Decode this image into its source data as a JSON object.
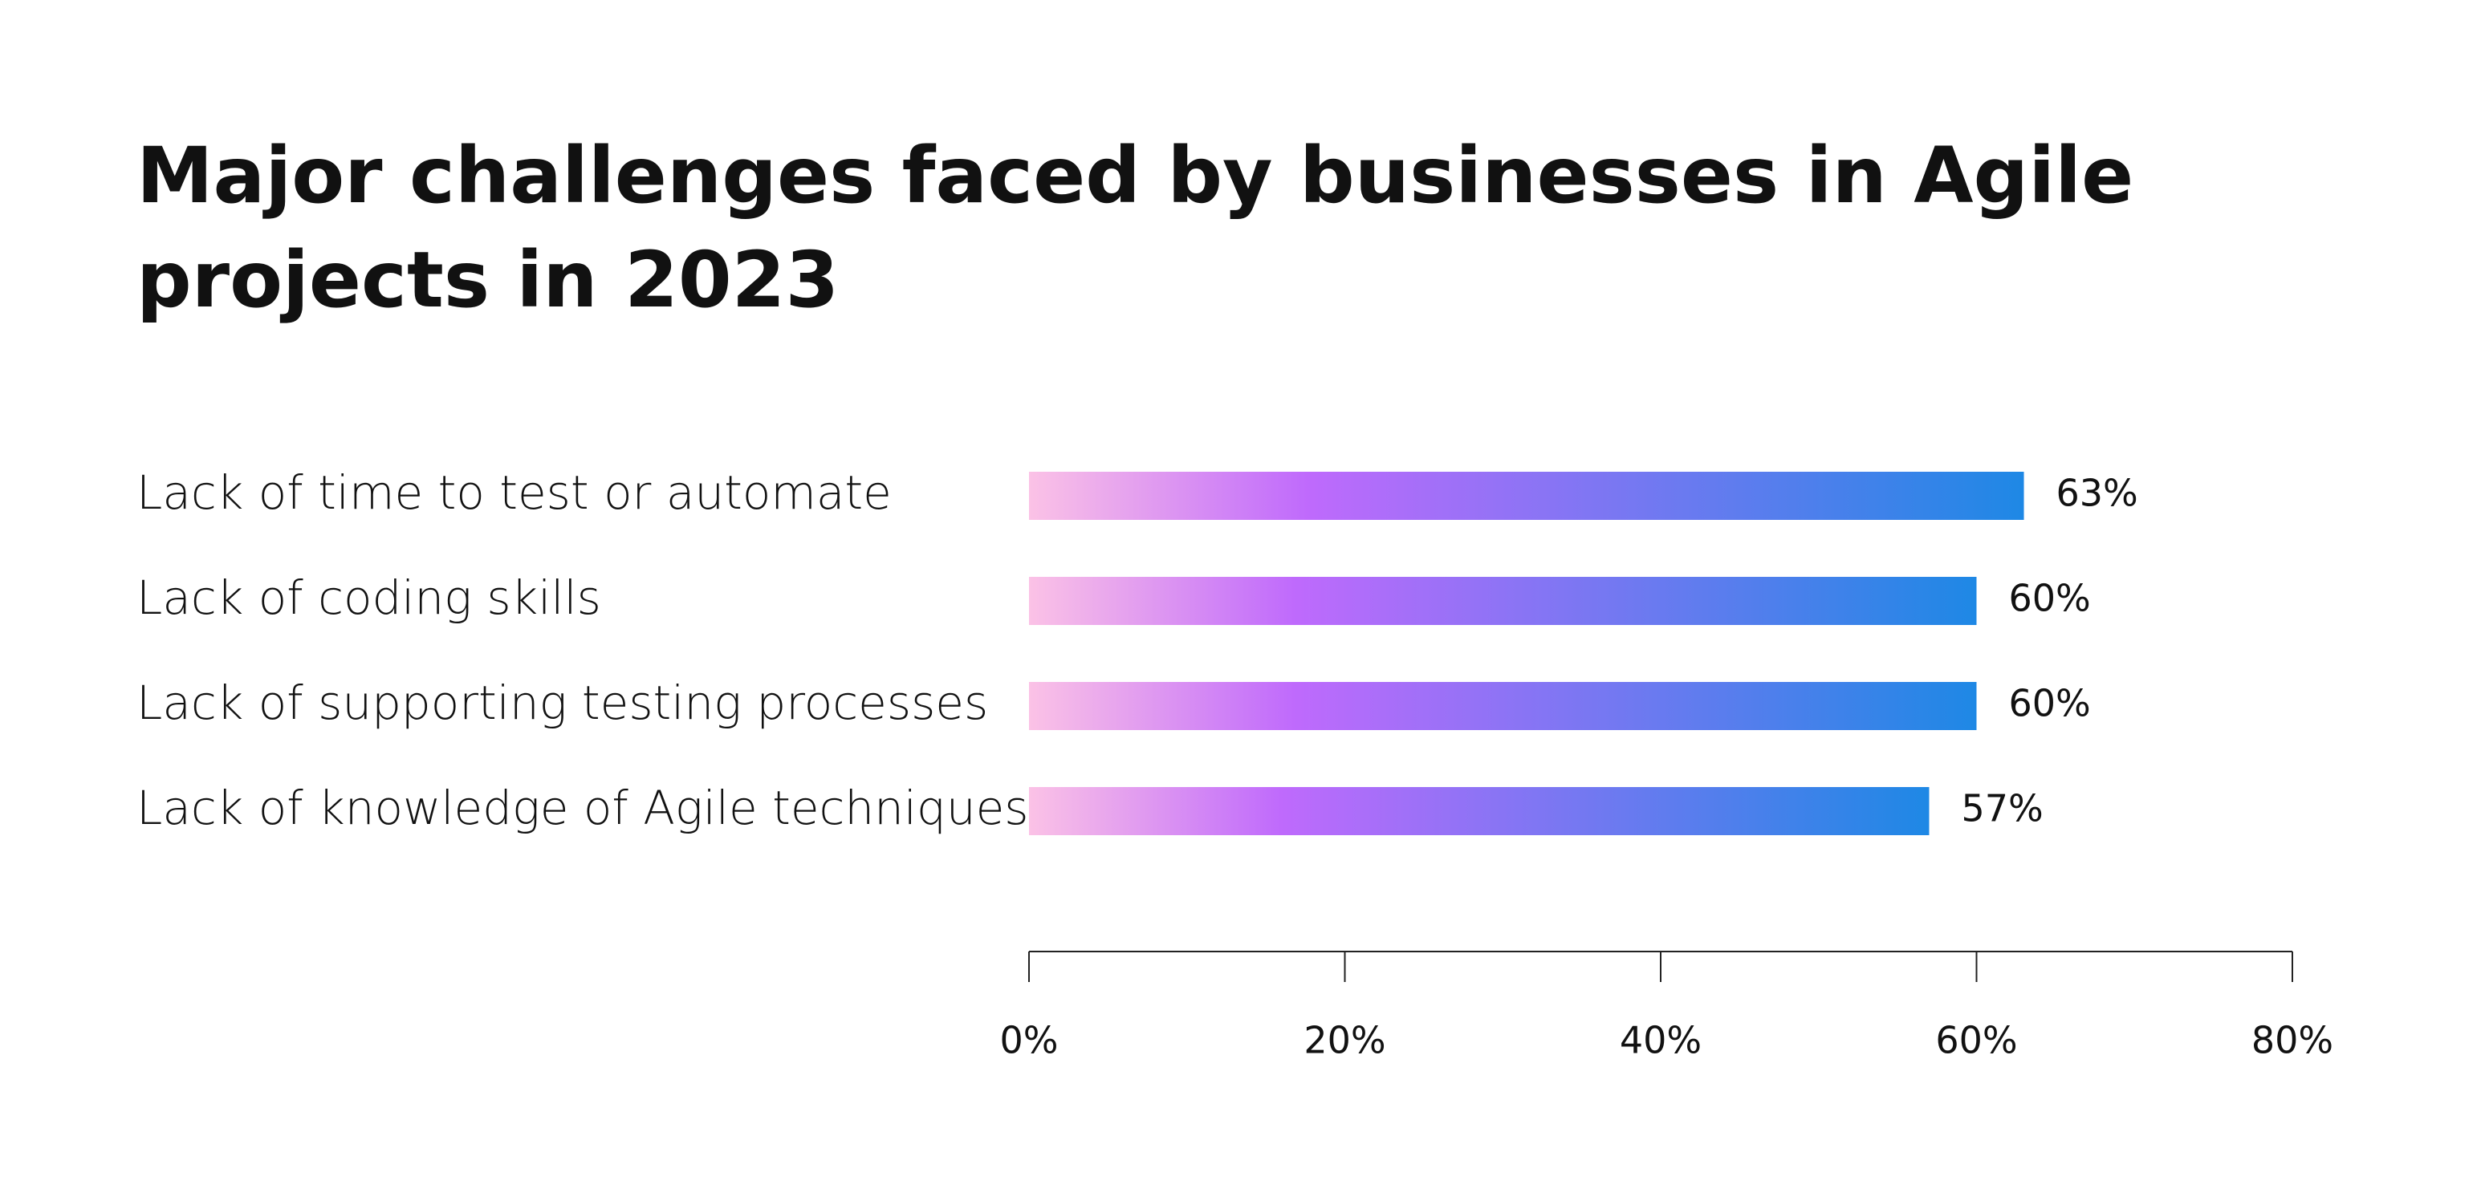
{
  "chart_data": {
    "type": "bar",
    "orientation": "horizontal",
    "title": "Major challenges faced by businesses in Agile projects in 2023",
    "categories": [
      "Lack of time to test or automate",
      "Lack of coding skills",
      "Lack of supporting testing processes",
      "Lack of knowledge of Agile techniques"
    ],
    "values": [
      63,
      60,
      60,
      57
    ],
    "value_labels": [
      "63%",
      "60%",
      "60%",
      "57%"
    ],
    "gradient_colors": [
      "#fbc2e6",
      "#bf6afc",
      "#1e88e5"
    ],
    "xlim": [
      0,
      80
    ],
    "xticks": [
      {
        "value": 0,
        "label": "0%"
      },
      {
        "value": 20,
        "label": "20%"
      },
      {
        "value": 40,
        "label": "40%"
      },
      {
        "value": 60,
        "label": "60%"
      },
      {
        "value": 80,
        "label": "80%"
      }
    ],
    "grid": false
  }
}
